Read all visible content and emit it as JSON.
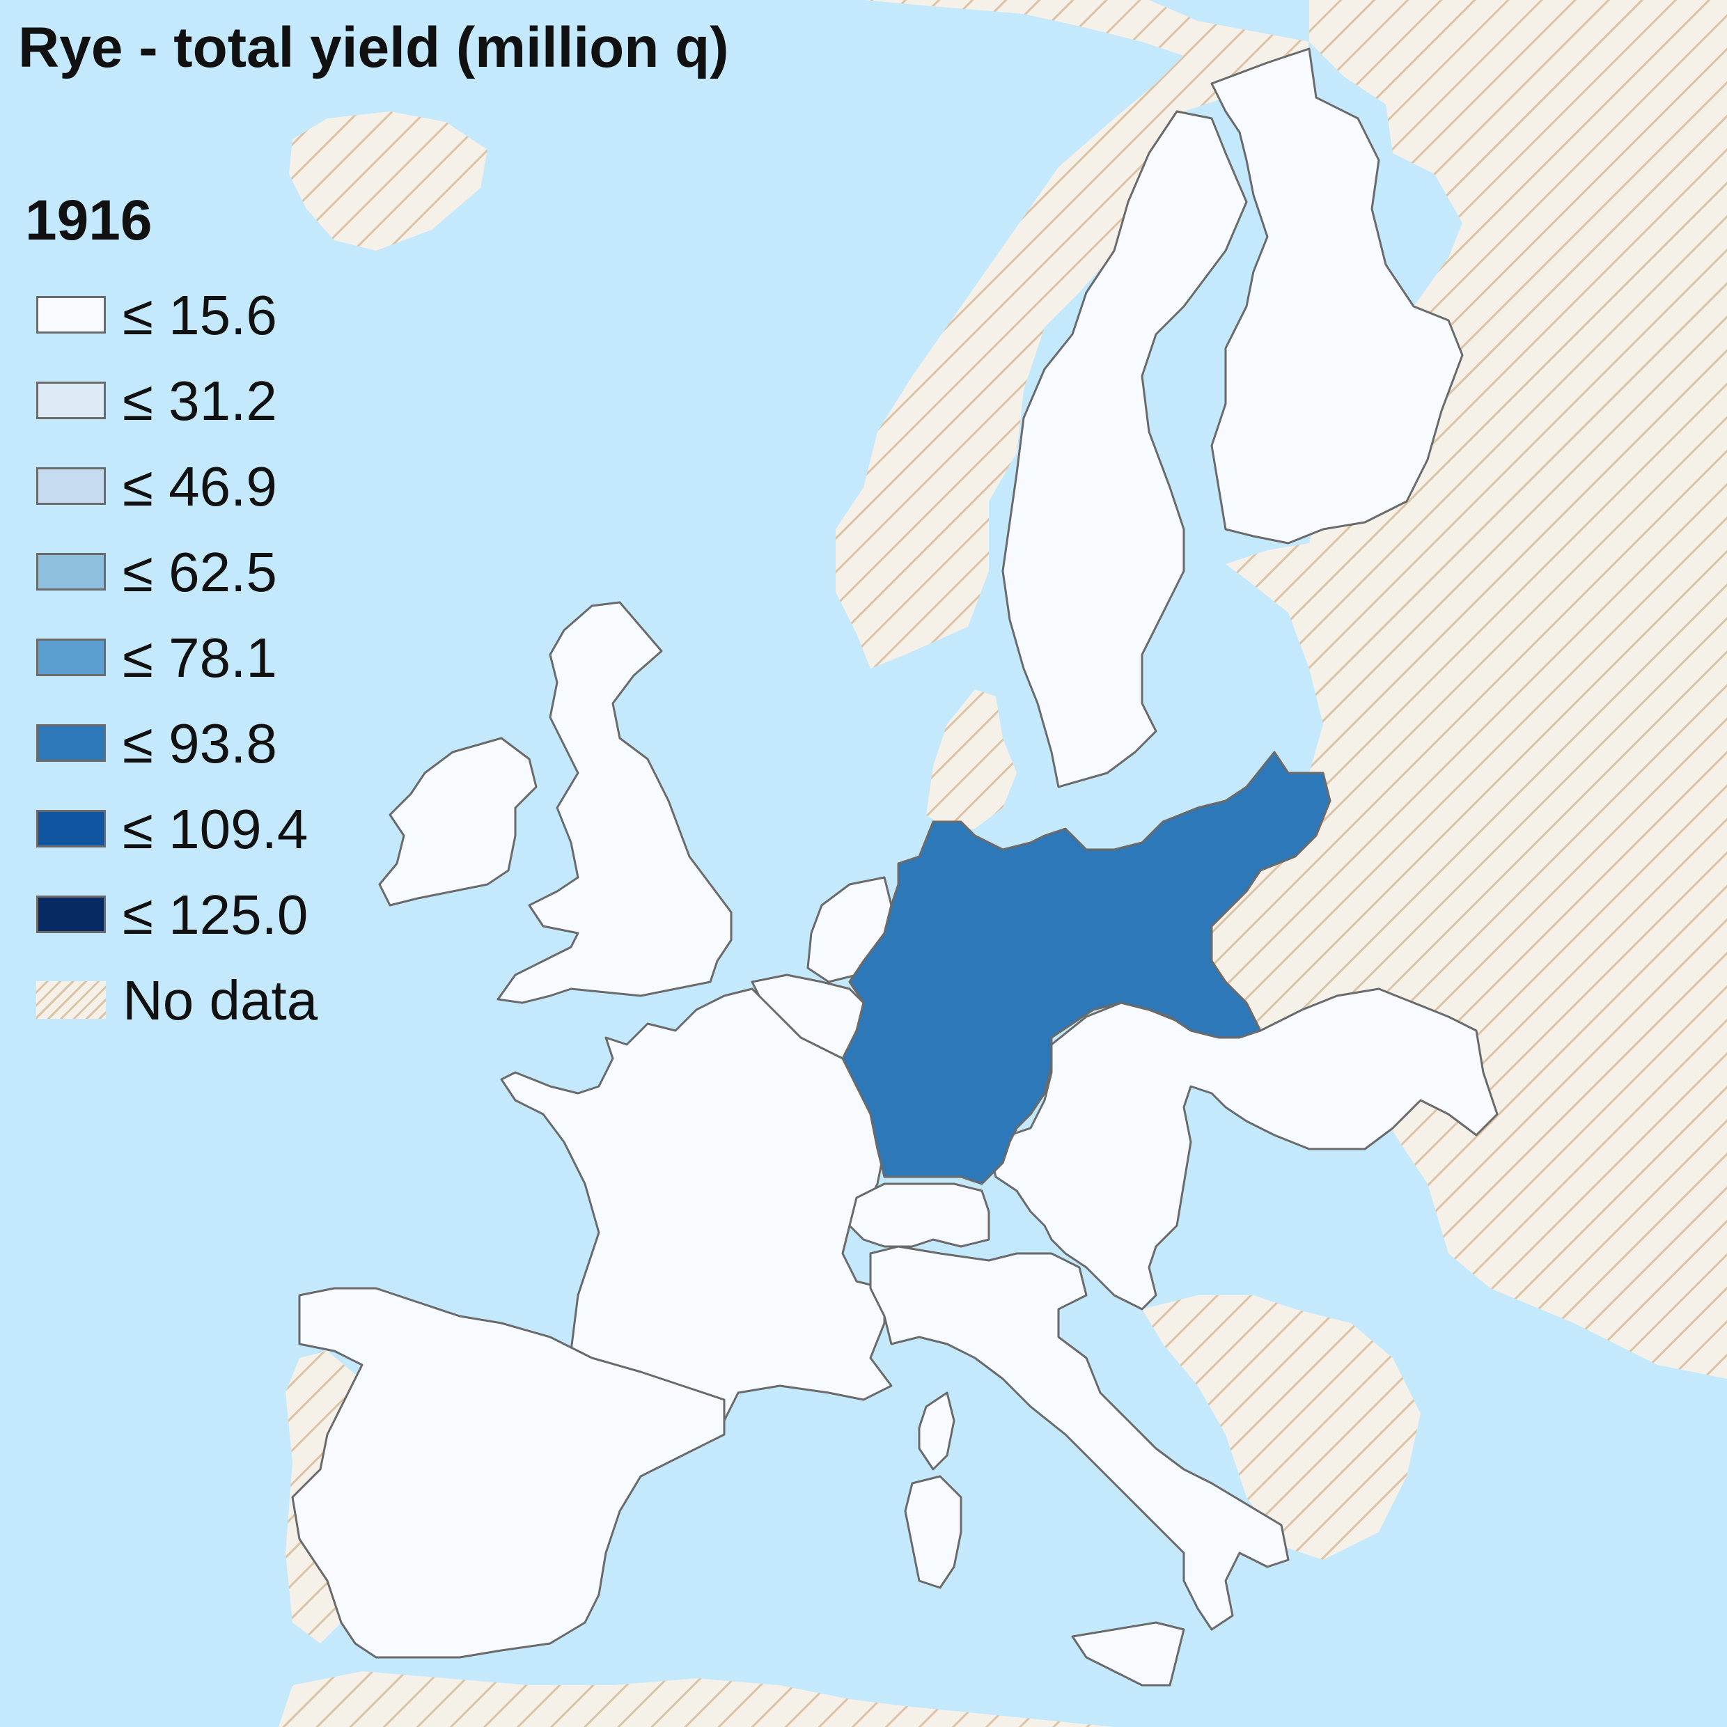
{
  "title": "Rye - total yield (million q)",
  "year": "1916",
  "legend": [
    {
      "label": "≤ 15.6",
      "color": "#f7fbff"
    },
    {
      "label": "≤ 31.2",
      "color": "#deebf7"
    },
    {
      "label": "≤ 46.9",
      "color": "#c6dbef"
    },
    {
      "label": "≤ 62.5",
      "color": "#8fbfdf"
    },
    {
      "label": "≤ 78.1",
      "color": "#5a9fd0"
    },
    {
      "label": "≤ 93.8",
      "color": "#2d78b8"
    },
    {
      "label": "≤ 109.4",
      "color": "#0f55a0"
    },
    {
      "label": "≤ 125.0",
      "color": "#082a62"
    },
    {
      "label": "No data",
      "color": "hatched",
      "swatch": "hatch"
    }
  ],
  "colors": {
    "sea": "#c4e8fc",
    "no_data_land": "#f5f0e8",
    "no_data_hatch": "#dcc3a5",
    "border": "#6a6a6a"
  },
  "regions": [
    {
      "name": "Germany",
      "value_class": "≤ 93.8",
      "color": "#2d78b8"
    },
    {
      "name": "France",
      "value_class": "≤ 15.6",
      "color": "#f7fbff"
    },
    {
      "name": "Spain",
      "value_class": "≤ 15.6",
      "color": "#f7fbff"
    },
    {
      "name": "Italy",
      "value_class": "≤ 15.6",
      "color": "#f7fbff"
    },
    {
      "name": "Great Britain",
      "value_class": "≤ 15.6",
      "color": "#f7fbff"
    },
    {
      "name": "Ireland",
      "value_class": "≤ 15.6",
      "color": "#f7fbff"
    },
    {
      "name": "Sweden",
      "value_class": "≤ 15.6",
      "color": "#f7fbff"
    },
    {
      "name": "Finland",
      "value_class": "≤ 15.6",
      "color": "#f7fbff"
    },
    {
      "name": "Netherlands",
      "value_class": "≤ 15.6",
      "color": "#f7fbff"
    },
    {
      "name": "Belgium",
      "value_class": "≤ 15.6",
      "color": "#f7fbff"
    },
    {
      "name": "Switzerland",
      "value_class": "≤ 15.6",
      "color": "#f7fbff"
    },
    {
      "name": "Austria-Hungary",
      "value_class": "≤ 15.6",
      "color": "#f7fbff"
    },
    {
      "name": "Norway",
      "value_class": "No data",
      "color": "hatched"
    },
    {
      "name": "Denmark",
      "value_class": "No data",
      "color": "hatched"
    },
    {
      "name": "Russia",
      "value_class": "No data",
      "color": "hatched"
    },
    {
      "name": "Balkans",
      "value_class": "No data",
      "color": "hatched"
    },
    {
      "name": "Portugal",
      "value_class": "No data",
      "color": "hatched"
    },
    {
      "name": "Iceland",
      "value_class": "No data",
      "color": "hatched"
    },
    {
      "name": "North Africa",
      "value_class": "No data",
      "color": "hatched"
    }
  ]
}
